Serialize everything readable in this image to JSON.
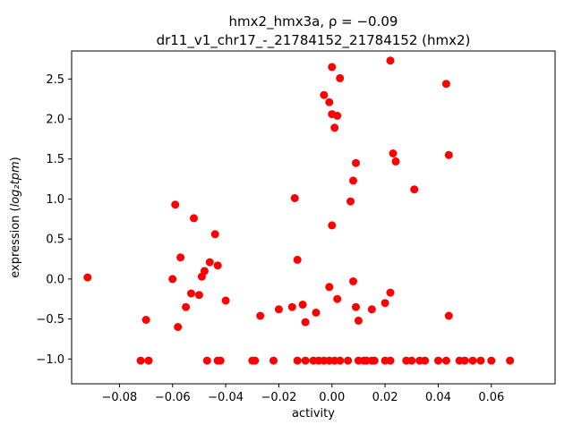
{
  "chart_data": {
    "type": "scatter",
    "title_line1": "hmx2_hmx3a, ρ = −0.09",
    "title_line2": "dr11_v1_chr17_-_21784152_21784152 (hmx2)",
    "xlabel": "activity",
    "ylabel_prefix": "expression (",
    "ylabel_math": "log₂tpm",
    "ylabel_suffix": ")",
    "marker_color": "#ff0000",
    "axis_color": "#000000",
    "xlim": [
      -0.098,
      0.084
    ],
    "ylim": [
      -1.31,
      2.85
    ],
    "xticks": [
      -0.08,
      -0.06,
      -0.04,
      -0.02,
      0.0,
      0.02,
      0.04,
      0.06
    ],
    "yticks": [
      -1.0,
      -0.5,
      0.0,
      0.5,
      1.0,
      1.5,
      2.0,
      2.5
    ],
    "legend": "none",
    "grid": false,
    "points": [
      [
        -0.003,
        2.3
      ],
      [
        0.0,
        2.65
      ],
      [
        0.003,
        2.51
      ],
      [
        -0.001,
        2.21
      ],
      [
        0.0,
        2.06
      ],
      [
        0.002,
        2.04
      ],
      [
        0.001,
        1.89
      ],
      [
        0.022,
        2.73
      ],
      [
        0.043,
        2.44
      ],
      [
        0.044,
        1.55
      ],
      [
        0.023,
        1.57
      ],
      [
        0.024,
        1.47
      ],
      [
        0.009,
        1.45
      ],
      [
        0.008,
        1.23
      ],
      [
        0.031,
        1.12
      ],
      [
        0.007,
        0.97
      ],
      [
        0.0,
        0.67
      ],
      [
        -0.014,
        1.01
      ],
      [
        -0.059,
        0.93
      ],
      [
        -0.052,
        0.76
      ],
      [
        -0.044,
        0.56
      ],
      [
        -0.092,
        0.02
      ],
      [
        -0.07,
        -0.51
      ],
      [
        -0.06,
        0.0
      ],
      [
        -0.058,
        -0.6
      ],
      [
        -0.057,
        0.27
      ],
      [
        -0.055,
        -0.35
      ],
      [
        -0.053,
        -0.18
      ],
      [
        -0.05,
        -0.2
      ],
      [
        -0.049,
        0.03
      ],
      [
        -0.048,
        0.1
      ],
      [
        -0.046,
        0.21
      ],
      [
        -0.043,
        0.17
      ],
      [
        -0.04,
        -0.27
      ],
      [
        -0.027,
        -0.46
      ],
      [
        -0.02,
        -0.38
      ],
      [
        -0.015,
        -0.35
      ],
      [
        -0.013,
        0.24
      ],
      [
        -0.011,
        -0.32
      ],
      [
        -0.01,
        -0.54
      ],
      [
        -0.006,
        -0.42
      ],
      [
        -0.001,
        -0.1
      ],
      [
        0.002,
        -0.25
      ],
      [
        0.008,
        -0.03
      ],
      [
        0.009,
        -0.35
      ],
      [
        0.01,
        -0.52
      ],
      [
        0.015,
        -0.38
      ],
      [
        0.02,
        -0.3
      ],
      [
        0.022,
        -0.17
      ],
      [
        0.044,
        -0.46
      ],
      [
        -0.072,
        -1.02
      ],
      [
        -0.069,
        -1.02
      ],
      [
        -0.047,
        -1.02
      ],
      [
        -0.043,
        -1.02
      ],
      [
        -0.042,
        -1.02
      ],
      [
        -0.03,
        -1.02
      ],
      [
        -0.029,
        -1.02
      ],
      [
        -0.022,
        -1.02
      ],
      [
        -0.013,
        -1.02
      ],
      [
        -0.01,
        -1.02
      ],
      [
        -0.007,
        -1.02
      ],
      [
        -0.005,
        -1.02
      ],
      [
        -0.003,
        -1.02
      ],
      [
        -0.001,
        -1.02
      ],
      [
        0.001,
        -1.02
      ],
      [
        0.003,
        -1.02
      ],
      [
        0.006,
        -1.02
      ],
      [
        0.01,
        -1.02
      ],
      [
        0.012,
        -1.02
      ],
      [
        0.013,
        -1.02
      ],
      [
        0.015,
        -1.02
      ],
      [
        0.016,
        -1.02
      ],
      [
        0.02,
        -1.02
      ],
      [
        0.022,
        -1.02
      ],
      [
        0.028,
        -1.02
      ],
      [
        0.03,
        -1.02
      ],
      [
        0.033,
        -1.02
      ],
      [
        0.035,
        -1.02
      ],
      [
        0.04,
        -1.02
      ],
      [
        0.043,
        -1.02
      ],
      [
        0.048,
        -1.02
      ],
      [
        0.05,
        -1.02
      ],
      [
        0.053,
        -1.02
      ],
      [
        0.056,
        -1.02
      ],
      [
        0.06,
        -1.02
      ],
      [
        0.067,
        -1.02
      ]
    ]
  }
}
